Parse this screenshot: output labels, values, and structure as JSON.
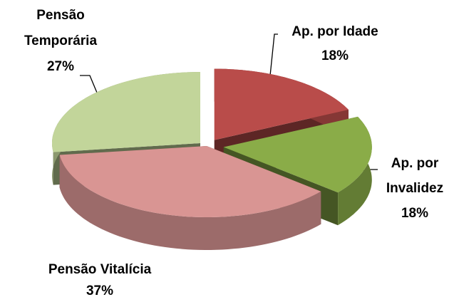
{
  "chart_data": {
    "type": "pie3d",
    "categories": [
      "Ap. por Idade",
      "Ap. por Invalidez",
      "Pensão Vitalícia",
      "Pensão Temporária"
    ],
    "values": [
      18,
      18,
      37,
      27
    ],
    "value_labels": [
      "18%",
      "18%",
      "37%",
      "27%"
    ],
    "colors": [
      "#b94c4a",
      "#8aac48",
      "#d99593",
      "#c2d59a"
    ]
  }
}
